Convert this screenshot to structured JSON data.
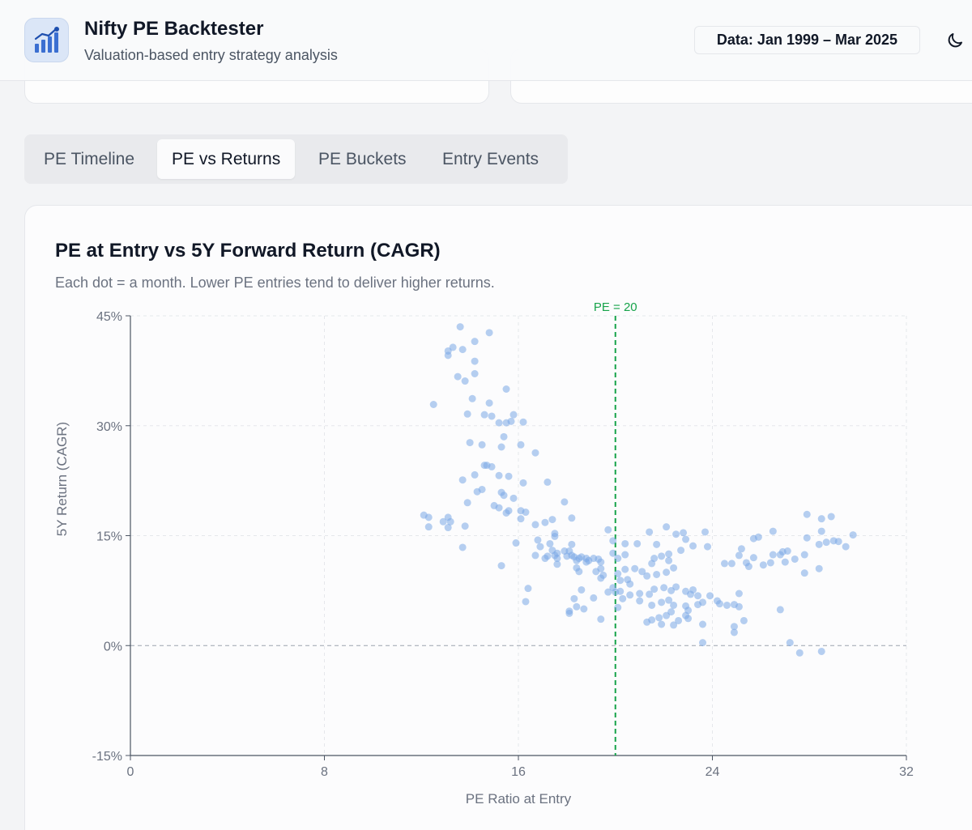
{
  "header": {
    "title": "Nifty PE Backtester",
    "subtitle": "Valuation-based entry strategy analysis",
    "data_range": "Data: Jan 1999 – Mar 2025",
    "logo_icon": "bar-chart-trend-icon",
    "theme_icon": "moon-icon"
  },
  "tabs": [
    {
      "label": "PE Timeline",
      "active": false
    },
    {
      "label": "PE vs Returns",
      "active": true
    },
    {
      "label": "PE Buckets",
      "active": false
    },
    {
      "label": "Entry Events",
      "active": false
    }
  ],
  "panel": {
    "title": "PE at Entry vs 5Y Forward Return (CAGR)",
    "subtitle": "Each dot = a month. Lower PE entries tend to deliver higher returns."
  },
  "colors": {
    "accent": "#3b82f6",
    "point": "#7aa7e6",
    "reference": "#16a34a",
    "grid": "#e5e7eb"
  },
  "chart_data": {
    "type": "scatter",
    "xlabel": "PE Ratio at Entry",
    "ylabel": "5Y Return (CAGR)",
    "xlim": [
      0,
      32
    ],
    "ylim": [
      -15,
      45
    ],
    "x_ticks": [
      "0",
      "8",
      "16",
      "24",
      "32"
    ],
    "y_ticks": [
      "45%",
      "30%",
      "15%",
      "0%",
      "-15%"
    ],
    "grid": true,
    "reference_line": {
      "x": 20,
      "label": "PE = 20"
    },
    "zero_line": {
      "y": 0
    },
    "points": [
      [
        13.6,
        43.5
      ],
      [
        14.8,
        42.7
      ],
      [
        14.2,
        41.5
      ],
      [
        13.1,
        40.2
      ],
      [
        13.1,
        39.6
      ],
      [
        13.3,
        40.7
      ],
      [
        13.7,
        40.4
      ],
      [
        14.2,
        38.8
      ],
      [
        14.2,
        37.1
      ],
      [
        13.5,
        36.7
      ],
      [
        13.8,
        36.1
      ],
      [
        15.5,
        35.0
      ],
      [
        12.5,
        32.9
      ],
      [
        14.1,
        33.7
      ],
      [
        14.8,
        33.1
      ],
      [
        13.9,
        31.6
      ],
      [
        14.6,
        31.5
      ],
      [
        14.9,
        31.3
      ],
      [
        15.2,
        30.4
      ],
      [
        15.5,
        30.4
      ],
      [
        15.7,
        30.6
      ],
      [
        16.2,
        30.5
      ],
      [
        15.8,
        31.5
      ],
      [
        15.4,
        28.5
      ],
      [
        16.1,
        27.4
      ],
      [
        14.0,
        27.7
      ],
      [
        14.5,
        27.4
      ],
      [
        15.3,
        27.1
      ],
      [
        16.7,
        26.3
      ],
      [
        14.7,
        24.6
      ],
      [
        14.6,
        24.6
      ],
      [
        14.9,
        24.4
      ],
      [
        14.2,
        23.3
      ],
      [
        15.2,
        23.2
      ],
      [
        15.6,
        23.1
      ],
      [
        13.7,
        22.6
      ],
      [
        16.2,
        22.2
      ],
      [
        17.2,
        22.3
      ],
      [
        14.3,
        21.0
      ],
      [
        14.5,
        21.3
      ],
      [
        15.3,
        20.9
      ],
      [
        15.4,
        20.5
      ],
      [
        15.8,
        20.1
      ],
      [
        13.9,
        19.5
      ],
      [
        15.0,
        19.1
      ],
      [
        15.2,
        18.8
      ],
      [
        16.1,
        18.4
      ],
      [
        15.6,
        18.4
      ],
      [
        17.9,
        19.6
      ],
      [
        12.1,
        17.8
      ],
      [
        12.3,
        17.5
      ],
      [
        13.1,
        17.5
      ],
      [
        13.2,
        16.9
      ],
      [
        13.8,
        16.3
      ],
      [
        12.9,
        16.9
      ],
      [
        15.5,
        18.1
      ],
      [
        16.3,
        18.2
      ],
      [
        16.1,
        17.3
      ],
      [
        17.1,
        16.8
      ],
      [
        16.7,
        16.5
      ],
      [
        17.4,
        17.2
      ],
      [
        18.2,
        17.4
      ],
      [
        12.3,
        16.2
      ],
      [
        13.1,
        16.1
      ],
      [
        13.7,
        13.4
      ],
      [
        15.9,
        14.0
      ],
      [
        16.8,
        14.4
      ],
      [
        17.3,
        13.9
      ],
      [
        17.5,
        14.9
      ],
      [
        17.5,
        15.3
      ],
      [
        18.2,
        13.8
      ],
      [
        16.9,
        13.5
      ],
      [
        17.4,
        13.0
      ],
      [
        17.9,
        12.9
      ],
      [
        17.6,
        12.6
      ],
      [
        18.1,
        12.9
      ],
      [
        17.5,
        12.3
      ],
      [
        18.0,
        12.2
      ],
      [
        18.3,
        12.1
      ],
      [
        18.5,
        11.9
      ],
      [
        18.8,
        11.9
      ],
      [
        17.2,
        12.2
      ],
      [
        17.1,
        11.9
      ],
      [
        17.6,
        11.9
      ],
      [
        18.2,
        12.3
      ],
      [
        18.6,
        12.1
      ],
      [
        18.9,
        11.6
      ],
      [
        19.1,
        11.9
      ],
      [
        19.3,
        11.8
      ],
      [
        18.4,
        11.6
      ],
      [
        18.8,
        11.4
      ],
      [
        19.4,
        11.4
      ],
      [
        19.9,
        12.6
      ],
      [
        20.1,
        11.9
      ],
      [
        20.4,
        12.4
      ],
      [
        19.9,
        14.3
      ],
      [
        20.4,
        13.9
      ],
      [
        20.9,
        13.9
      ],
      [
        19.7,
        15.8
      ],
      [
        21.4,
        15.5
      ],
      [
        21.7,
        13.8
      ],
      [
        22.1,
        16.2
      ],
      [
        22.5,
        15.2
      ],
      [
        22.8,
        15.4
      ],
      [
        22.9,
        14.5
      ],
      [
        23.2,
        13.6
      ],
      [
        23.7,
        15.5
      ],
      [
        23.8,
        13.5
      ],
      [
        22.7,
        13.0
      ],
      [
        22.2,
        12.5
      ],
      [
        21.9,
        12.2
      ],
      [
        21.6,
        11.9
      ],
      [
        21.5,
        11.2
      ],
      [
        22.2,
        11.6
      ],
      [
        22.4,
        10.6
      ],
      [
        22.1,
        10.0
      ],
      [
        21.7,
        9.7
      ],
      [
        21.3,
        9.5
      ],
      [
        21.1,
        10.1
      ],
      [
        20.8,
        10.5
      ],
      [
        20.4,
        10.4
      ],
      [
        20.1,
        9.8
      ],
      [
        19.4,
        10.5
      ],
      [
        18.4,
        10.6
      ],
      [
        18.5,
        10.1
      ],
      [
        19.2,
        10.1
      ],
      [
        19.5,
        9.6
      ],
      [
        19.4,
        9.2
      ],
      [
        20.5,
        9.0
      ],
      [
        20.2,
        8.9
      ],
      [
        20.6,
        8.4
      ],
      [
        21.6,
        7.7
      ],
      [
        22.0,
        7.9
      ],
      [
        22.3,
        7.5
      ],
      [
        22.5,
        8.0
      ],
      [
        22.9,
        7.4
      ],
      [
        23.1,
        7.0
      ],
      [
        23.4,
        6.8
      ],
      [
        23.9,
        6.8
      ],
      [
        24.2,
        6.1
      ],
      [
        21.4,
        7.0
      ],
      [
        20.2,
        7.4
      ],
      [
        21.0,
        7.1
      ],
      [
        20.6,
        6.9
      ],
      [
        20.3,
        6.4
      ],
      [
        21.0,
        6.1
      ],
      [
        21.5,
        5.5
      ],
      [
        21.9,
        5.9
      ],
      [
        22.2,
        6.2
      ],
      [
        22.4,
        5.5
      ],
      [
        22.9,
        5.4
      ],
      [
        23.4,
        5.6
      ],
      [
        23.6,
        5.9
      ],
      [
        23.0,
        4.8
      ],
      [
        22.3,
        4.6
      ],
      [
        22.1,
        4.1
      ],
      [
        21.8,
        3.8
      ],
      [
        21.5,
        3.5
      ],
      [
        21.3,
        3.2
      ],
      [
        21.9,
        2.9
      ],
      [
        22.4,
        2.8
      ],
      [
        22.6,
        3.4
      ],
      [
        22.9,
        4.1
      ],
      [
        23.0,
        3.7
      ],
      [
        20.1,
        5.2
      ],
      [
        20.0,
        7.3
      ],
      [
        19.7,
        7.3
      ],
      [
        18.6,
        7.6
      ],
      [
        18.3,
        6.4
      ],
      [
        18.4,
        5.3
      ],
      [
        18.7,
        5.0
      ],
      [
        19.1,
        6.5
      ],
      [
        18.1,
        4.4
      ],
      [
        18.1,
        4.7
      ],
      [
        19.4,
        3.6
      ],
      [
        16.3,
        6.0
      ],
      [
        16.4,
        7.8
      ],
      [
        15.3,
        10.9
      ],
      [
        23.6,
        2.9
      ],
      [
        24.3,
        5.7
      ],
      [
        24.6,
        5.5
      ],
      [
        24.9,
        5.6
      ],
      [
        25.1,
        5.3
      ],
      [
        24.9,
        2.6
      ],
      [
        24.9,
        1.8
      ],
      [
        25.3,
        3.4
      ],
      [
        23.6,
        0.4
      ],
      [
        25.1,
        7.1
      ],
      [
        24.5,
        11.2
      ],
      [
        24.8,
        11.2
      ],
      [
        25.1,
        12.3
      ],
      [
        25.4,
        11.3
      ],
      [
        25.5,
        10.8
      ],
      [
        25.7,
        12.0
      ],
      [
        26.1,
        11.0
      ],
      [
        26.4,
        11.3
      ],
      [
        26.5,
        12.4
      ],
      [
        26.8,
        12.4
      ],
      [
        27.0,
        11.4
      ],
      [
        25.2,
        13.2
      ],
      [
        25.7,
        14.6
      ],
      [
        25.9,
        14.8
      ],
      [
        26.5,
        15.6
      ],
      [
        27.1,
        12.9
      ],
      [
        26.9,
        12.8
      ],
      [
        27.4,
        11.8
      ],
      [
        27.8,
        12.4
      ],
      [
        27.9,
        14.7
      ],
      [
        27.9,
        17.9
      ],
      [
        28.5,
        17.3
      ],
      [
        28.9,
        17.6
      ],
      [
        28.5,
        15.6
      ],
      [
        28.7,
        14.1
      ],
      [
        29.0,
        14.3
      ],
      [
        29.2,
        14.2
      ],
      [
        29.5,
        13.5
      ],
      [
        29.8,
        15.1
      ],
      [
        28.4,
        13.8
      ],
      [
        28.4,
        10.5
      ],
      [
        27.8,
        9.9
      ],
      [
        27.2,
        0.4
      ],
      [
        27.6,
        -1.0
      ],
      [
        28.5,
        -0.8
      ],
      [
        26.8,
        4.9
      ],
      [
        23.2,
        7.6
      ],
      [
        19.9,
        7.9
      ],
      [
        17.6,
        11.1
      ],
      [
        16.7,
        12.3
      ]
    ]
  }
}
